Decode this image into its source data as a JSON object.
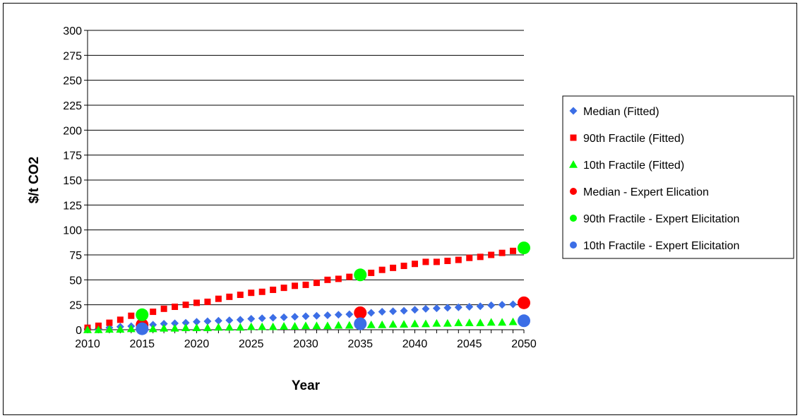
{
  "chart_data": {
    "type": "scatter",
    "title": "",
    "xlabel": "Year",
    "ylabel": "$/t CO2",
    "xlim": [
      2010,
      2050
    ],
    "ylim": [
      0,
      300
    ],
    "x_ticks": [
      "2010",
      "2015",
      "2020",
      "2025",
      "2030",
      "2035",
      "2040",
      "2045",
      "2050"
    ],
    "y_ticks": [
      "0",
      "25",
      "50",
      "75",
      "100",
      "125",
      "150",
      "175",
      "200",
      "225",
      "250",
      "275",
      "300"
    ],
    "grid": "horizontal",
    "legend_position": "right",
    "series": [
      {
        "name": "Median (Fitted)",
        "marker": "diamond",
        "color": "#3c6ee6",
        "x": [
          2010,
          2011,
          2012,
          2013,
          2014,
          2015,
          2016,
          2017,
          2018,
          2019,
          2020,
          2021,
          2022,
          2023,
          2024,
          2025,
          2026,
          2027,
          2028,
          2029,
          2030,
          2031,
          2032,
          2033,
          2034,
          2035,
          2036,
          2037,
          2038,
          2039,
          2040,
          2041,
          2042,
          2043,
          2044,
          2045,
          2046,
          2047,
          2048,
          2049,
          2050
        ],
        "y": [
          1,
          1,
          2,
          3,
          3.5,
          4,
          5,
          6,
          6.5,
          7,
          8,
          8.5,
          9,
          9.5,
          10,
          11,
          11.5,
          12,
          12.5,
          13,
          13.5,
          14,
          14.5,
          15,
          15.5,
          16,
          17,
          18,
          18.5,
          19,
          20,
          21,
          21.5,
          22,
          22.5,
          23,
          23.5,
          24.5,
          25,
          25.5,
          26
        ]
      },
      {
        "name": "90th Fractile (Fitted)",
        "marker": "square",
        "color": "#ff0000",
        "x": [
          2010,
          2011,
          2012,
          2013,
          2014,
          2015,
          2016,
          2017,
          2018,
          2019,
          2020,
          2021,
          2022,
          2023,
          2024,
          2025,
          2026,
          2027,
          2028,
          2029,
          2030,
          2031,
          2032,
          2033,
          2034,
          2035,
          2036,
          2037,
          2038,
          2039,
          2040,
          2041,
          2042,
          2043,
          2044,
          2045,
          2046,
          2047,
          2048,
          2049,
          2050
        ],
        "y": [
          2,
          4,
          7,
          10,
          14,
          15,
          18,
          21,
          23,
          25,
          27,
          28,
          31,
          33,
          35,
          37,
          38,
          40,
          42,
          44,
          45,
          47,
          50,
          51,
          53,
          55,
          57,
          60,
          62,
          64,
          66,
          68,
          68,
          69,
          70,
          72,
          73,
          75,
          77,
          79,
          81
        ]
      },
      {
        "name": "10th Fractile (Fitted)",
        "marker": "triangle",
        "color": "#00ff00",
        "x": [
          2010,
          2011,
          2012,
          2013,
          2014,
          2015,
          2016,
          2017,
          2018,
          2019,
          2020,
          2021,
          2022,
          2023,
          2024,
          2025,
          2026,
          2027,
          2028,
          2029,
          2030,
          2031,
          2032,
          2033,
          2034,
          2035,
          2036,
          2037,
          2038,
          2039,
          2040,
          2041,
          2042,
          2043,
          2044,
          2045,
          2046,
          2047,
          2048,
          2049,
          2050
        ],
        "y": [
          0,
          0,
          0.5,
          0.5,
          1,
          1,
          1,
          1.5,
          1.5,
          2,
          2,
          2,
          2.5,
          2.5,
          2.5,
          3,
          3,
          3,
          3.5,
          3.5,
          4,
          4,
          4,
          4.5,
          4.5,
          5,
          5,
          5,
          5.5,
          5.5,
          6,
          6,
          6.5,
          6.5,
          7,
          7,
          7,
          7.5,
          7.5,
          8,
          8
        ]
      },
      {
        "name": "Median - Expert Elication",
        "marker": "circle",
        "color": "#ff0000",
        "x": [
          2015,
          2035,
          2050
        ],
        "y": [
          5,
          17,
          27
        ]
      },
      {
        "name": "90th Fractile - Expert Elicitation",
        "marker": "circle",
        "color": "#00ff00",
        "x": [
          2015,
          2035,
          2050
        ],
        "y": [
          15,
          55,
          82
        ]
      },
      {
        "name": "10th Fractile - Expert Elicitation",
        "marker": "circle",
        "color": "#3c6ee6",
        "x": [
          2015,
          2035,
          2050
        ],
        "y": [
          1,
          6,
          9
        ]
      }
    ]
  }
}
